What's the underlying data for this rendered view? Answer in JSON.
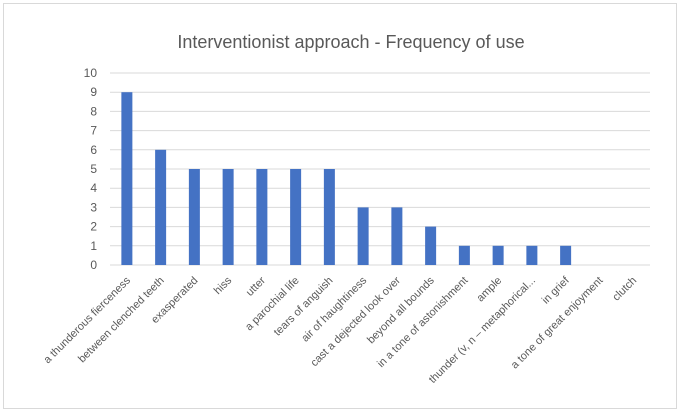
{
  "chart_data": {
    "type": "bar",
    "title": "Interventionist approach - Frequency of use",
    "xlabel": "",
    "ylabel": "",
    "categories": [
      "a thunderous fierceness",
      "between clenched teeth",
      "exasperated",
      "hiss",
      "utter",
      "a parochial life",
      "tears of anguish",
      "air of haughtiness",
      "cast a dejected look over",
      "beyond all bounds",
      "in a tone of astonishment",
      "ample",
      "thunder (v, n – metaphorical...",
      "in grief",
      "a tone of great enjoyment",
      "clutch"
    ],
    "values": [
      9,
      6,
      5,
      5,
      5,
      5,
      5,
      3,
      3,
      2,
      1,
      1,
      1,
      1,
      0,
      0
    ],
    "ylim": [
      0,
      10
    ],
    "yticks": [
      0,
      1,
      2,
      3,
      4,
      5,
      6,
      7,
      8,
      9,
      10
    ],
    "grid": true,
    "legend": "none",
    "bar_color": "#4472c4"
  }
}
